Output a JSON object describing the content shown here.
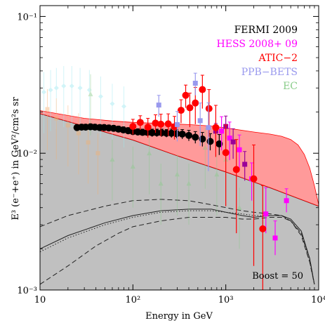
{
  "chart_data": {
    "type": "scatter",
    "xlabel": "Energy in GeV",
    "ylabel": "E³ (e⁻+e⁺) in GeV²/cm²s sr",
    "xscale": "log",
    "yscale": "log",
    "xlim": [
      10,
      10000
    ],
    "ylim": [
      0.001,
      0.12
    ],
    "x_ticks": [
      {
        "value": 10,
        "label": "10"
      },
      {
        "value": 100,
        "label": "10²"
      },
      {
        "value": 1000,
        "label": "10³"
      },
      {
        "value": 10000,
        "label": "10⁴"
      }
    ],
    "y_ticks": [
      {
        "value": 0.001,
        "label": "10⁻³"
      },
      {
        "value": 0.01,
        "label": "10⁻²"
      },
      {
        "value": 0.1,
        "label": "10⁻¹"
      }
    ],
    "legend_position": "top-right",
    "legend": [
      {
        "name": "FERMI 2009",
        "color": "#000000"
      },
      {
        "name": "HESS 2008+ 09",
        "color": "#ff00ff"
      },
      {
        "name": "ATIC−2",
        "color": "#ff0000"
      },
      {
        "name": "PPB−BETS",
        "color": "#9999ee"
      },
      {
        "name": "EC",
        "color": "#88cc88"
      }
    ],
    "annotation": "Boost = 50",
    "bands": [
      {
        "name": "background",
        "color": "#c0c0c0",
        "upper": [
          [
            10,
            0.0195
          ],
          [
            30,
            0.0158
          ],
          [
            100,
            0.0125
          ],
          [
            300,
            0.0096
          ],
          [
            1000,
            0.0073
          ],
          [
            3000,
            0.0056
          ],
          [
            10000,
            0.0041
          ]
        ]
      },
      {
        "name": "total",
        "color": "#ff9a9a",
        "upper": [
          [
            10,
            0.0205
          ],
          [
            30,
            0.018
          ],
          [
            60,
            0.0172
          ],
          [
            100,
            0.0168
          ],
          [
            200,
            0.0165
          ],
          [
            400,
            0.0162
          ],
          [
            700,
            0.0158
          ],
          [
            1000,
            0.0153
          ],
          [
            2000,
            0.0143
          ],
          [
            3000,
            0.0138
          ],
          [
            4000,
            0.0133
          ],
          [
            5000,
            0.0126
          ],
          [
            6000,
            0.0115
          ],
          [
            7000,
            0.0098
          ],
          [
            8000,
            0.0078
          ],
          [
            9000,
            0.0058
          ],
          [
            10000,
            0.0042
          ]
        ],
        "lower": [
          [
            10,
            0.0195
          ],
          [
            30,
            0.0158
          ],
          [
            100,
            0.0125
          ],
          [
            300,
            0.0096
          ],
          [
            1000,
            0.0073
          ],
          [
            3000,
            0.0056
          ],
          [
            10000,
            0.0041
          ]
        ]
      }
    ],
    "curves": [
      {
        "name": "dashed-upper",
        "style": "dashed",
        "points": [
          [
            10,
            0.0029
          ],
          [
            20,
            0.0035
          ],
          [
            50,
            0.0041
          ],
          [
            100,
            0.0045
          ],
          [
            200,
            0.0046
          ],
          [
            400,
            0.0045
          ],
          [
            700,
            0.0042
          ],
          [
            1000,
            0.004
          ],
          [
            1500,
            0.0038
          ],
          [
            2000,
            0.0037
          ],
          [
            3000,
            0.0036
          ],
          [
            4000,
            0.0035
          ],
          [
            5000,
            0.0032
          ],
          [
            6500,
            0.0025
          ],
          [
            8000,
            0.0016
          ],
          [
            9000,
            0.0011
          ]
        ]
      },
      {
        "name": "dashed-lower",
        "style": "dashed",
        "points": [
          [
            10,
            0.0011
          ],
          [
            20,
            0.0015
          ],
          [
            40,
            0.0021
          ],
          [
            70,
            0.0026
          ],
          [
            100,
            0.0029
          ],
          [
            200,
            0.0032
          ],
          [
            400,
            0.0034
          ],
          [
            700,
            0.0034
          ],
          [
            1000,
            0.0034
          ],
          [
            1500,
            0.0033
          ],
          [
            2000,
            0.0033
          ],
          [
            3000,
            0.0034
          ],
          [
            4000,
            0.0034
          ],
          [
            5000,
            0.0032
          ],
          [
            6500,
            0.0026
          ],
          [
            8000,
            0.0017
          ],
          [
            9000,
            0.0011
          ]
        ]
      },
      {
        "name": "dotted",
        "style": "dotted",
        "points": [
          [
            10,
            0.0019
          ],
          [
            20,
            0.0024
          ],
          [
            50,
            0.003
          ],
          [
            100,
            0.0034
          ],
          [
            200,
            0.0037
          ],
          [
            400,
            0.0038
          ],
          [
            700,
            0.0038
          ],
          [
            1000,
            0.0037
          ],
          [
            1500,
            0.0036
          ],
          [
            2000,
            0.0035
          ],
          [
            3000,
            0.0035
          ],
          [
            4000,
            0.0035
          ],
          [
            5000,
            0.0032
          ],
          [
            6500,
            0.0026
          ],
          [
            8000,
            0.0016
          ],
          [
            9000,
            0.0011
          ]
        ]
      },
      {
        "name": "solid-signal",
        "style": "solid",
        "points": [
          [
            10,
            0.002
          ],
          [
            20,
            0.0025
          ],
          [
            50,
            0.0031
          ],
          [
            100,
            0.0035
          ],
          [
            200,
            0.0038
          ],
          [
            400,
            0.0039
          ],
          [
            700,
            0.0039
          ],
          [
            1000,
            0.0037
          ],
          [
            1500,
            0.0035
          ],
          [
            2000,
            0.0034
          ],
          [
            3000,
            0.0035
          ],
          [
            4000,
            0.0035
          ],
          [
            5000,
            0.0033
          ],
          [
            6500,
            0.0027
          ],
          [
            8000,
            0.0017
          ],
          [
            9000,
            0.0011
          ]
        ]
      }
    ],
    "series": [
      {
        "name": "FERMI 2009",
        "color": "#000000",
        "marker": "circle",
        "points": [
          [
            25,
            0.0154,
            0.0008,
            0.0008
          ],
          [
            28,
            0.0155,
            0.0008,
            0.0008
          ],
          [
            31,
            0.0155,
            0.0008,
            0.0008
          ],
          [
            35,
            0.0156,
            0.0008,
            0.0008
          ],
          [
            39,
            0.0155,
            0.0008,
            0.0008
          ],
          [
            44,
            0.0154,
            0.0008,
            0.0008
          ],
          [
            49,
            0.0154,
            0.0008,
            0.0008
          ],
          [
            55,
            0.0153,
            0.0008,
            0.0008
          ],
          [
            62,
            0.0152,
            0.0008,
            0.0008
          ],
          [
            70,
            0.015,
            0.0008,
            0.0008
          ],
          [
            79,
            0.0148,
            0.0008,
            0.0008
          ],
          [
            89,
            0.0146,
            0.0008,
            0.0008
          ],
          [
            100,
            0.0144,
            0.0008,
            0.0008
          ],
          [
            113,
            0.0143,
            0.0008,
            0.0008
          ],
          [
            127,
            0.0142,
            0.0008,
            0.0008
          ],
          [
            143,
            0.0142,
            0.0008,
            0.0008
          ],
          [
            161,
            0.0141,
            0.0009,
            0.0009
          ],
          [
            181,
            0.0141,
            0.0009,
            0.0009
          ],
          [
            204,
            0.0141,
            0.0009,
            0.0009
          ],
          [
            230,
            0.014,
            0.0009,
            0.0009
          ],
          [
            260,
            0.014,
            0.001,
            0.001
          ],
          [
            295,
            0.0139,
            0.001,
            0.001
          ],
          [
            340,
            0.0138,
            0.0011,
            0.0011
          ],
          [
            400,
            0.0135,
            0.0012,
            0.0012
          ],
          [
            470,
            0.0131,
            0.0013,
            0.0013
          ],
          [
            560,
            0.0127,
            0.0015,
            0.0015
          ],
          [
            680,
            0.0122,
            0.0017,
            0.0017
          ],
          [
            850,
            0.0117,
            0.002,
            0.002
          ]
        ]
      },
      {
        "name": "HESS 2008+ 09",
        "color": "#ff00ff",
        "marker": "square",
        "points": [
          [
            900,
            0.0145,
            0.004,
            0.004
          ],
          [
            1100,
            0.0129,
            0.004,
            0.004
          ],
          [
            1400,
            0.0106,
            0.003,
            0.003
          ],
          [
            1900,
            0.0065,
            0.002,
            0.002
          ],
          [
            2700,
            0.0036,
            0.002,
            0.001
          ],
          [
            3400,
            0.0024,
            0.0008,
            0.0006
          ],
          [
            4500,
            0.0045,
            0.001,
            0.0008
          ]
        ]
      },
      {
        "name": "HESS purple",
        "color": "#990099",
        "marker": "square",
        "points": [
          [
            780,
            0.0145,
            0.002,
            0.002
          ],
          [
            1000,
            0.0157,
            0.003,
            0.003
          ],
          [
            1200,
            0.0121,
            0.003,
            0.003
          ],
          [
            1600,
            0.0083,
            0.002,
            0.002
          ]
        ]
      },
      {
        "name": "ATIC−2",
        "color": "#ff0000",
        "marker": "circle",
        "points": [
          [
            100,
            0.0157,
            0.002,
            0.002
          ],
          [
            120,
            0.0168,
            0.002,
            0.002
          ],
          [
            145,
            0.0155,
            0.0025,
            0.0025
          ],
          [
            175,
            0.0166,
            0.0025,
            0.0025
          ],
          [
            200,
            0.0163,
            0.003,
            0.003
          ],
          [
            240,
            0.0164,
            0.003,
            0.003
          ],
          [
            280,
            0.0156,
            0.003,
            0.003
          ],
          [
            330,
            0.0206,
            0.004,
            0.004
          ],
          [
            370,
            0.0265,
            0.005,
            0.005
          ],
          [
            410,
            0.0215,
            0.006,
            0.006
          ],
          [
            470,
            0.0233,
            0.007,
            0.007
          ],
          [
            560,
            0.0292,
            0.008,
            0.008
          ],
          [
            660,
            0.0212,
            0.008,
            0.008
          ],
          [
            780,
            0.0154,
            0.007,
            0.006
          ],
          [
            1000,
            0.0101,
            0.006,
            0.006
          ],
          [
            1300,
            0.0076,
            0.005,
            0.005
          ],
          [
            2000,
            0.0065,
            0.005,
            0.005
          ],
          [
            2500,
            0.0028,
            0.003,
            0.0018
          ]
        ]
      },
      {
        "name": "PPB−BETS",
        "color": "#9999ee",
        "marker": "square",
        "points": [
          [
            190,
            0.0225,
            0.004,
            0.004
          ],
          [
            300,
            0.0162,
            0.004,
            0.004
          ],
          [
            470,
            0.0325,
            0.006,
            0.006
          ],
          [
            530,
            0.0173,
            0.006,
            0.006
          ],
          [
            650,
            0.0154,
            0.008,
            0.008
          ]
        ]
      }
    ]
  }
}
